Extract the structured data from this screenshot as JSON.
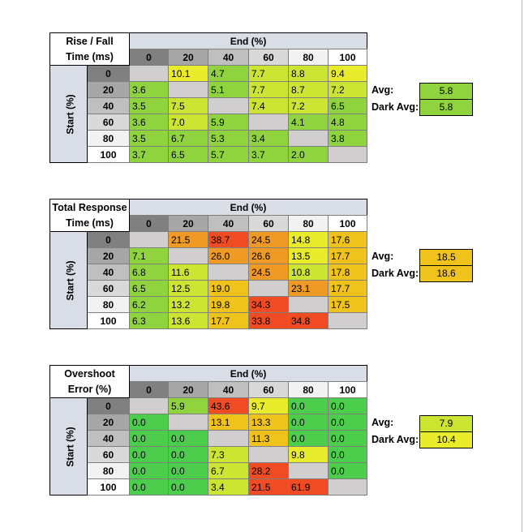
{
  "colors": {
    "header_bg": "#d9dee6",
    "empty": "#d0cece",
    "green_dark": "#4cce4c",
    "green": "#8fd33f",
    "yellowgreen": "#cbe532",
    "yellow": "#e8ec2a",
    "amber": "#efc21c",
    "orange": "#f09a26",
    "red": "#f04c24",
    "col_0": "#808080",
    "col_20": "#a6a6a6",
    "col_40": "#bfbfbf",
    "col_60": "#d9d9d9",
    "col_80": "#f2f2f2",
    "col_100": "#ffffff"
  },
  "col_labels": [
    "0",
    "20",
    "40",
    "60",
    "80",
    "100"
  ],
  "row_labels": [
    "0",
    "20",
    "40",
    "60",
    "80",
    "100"
  ],
  "end_header": "End (%)",
  "start_header": "Start (%)",
  "avg_label": "Avg:",
  "dark_avg_label": "Dark Avg:",
  "tables": [
    {
      "title_line1": "Rise / Fall",
      "title_line2": "Time (ms)",
      "avg": "5.8",
      "dark_avg": "5.8",
      "avg_color": "#8fd33f",
      "dark_avg_color": "#8fd33f",
      "cells": [
        [
          [
            "",
            "#d0cece"
          ],
          [
            "10.1",
            "#e8ec2a"
          ],
          [
            "4.7",
            "#8fd33f"
          ],
          [
            "7.7",
            "#cbe532"
          ],
          [
            "8.8",
            "#cbe532"
          ],
          [
            "9.4",
            "#e8ec2a"
          ]
        ],
        [
          [
            "3.6",
            "#8fd33f"
          ],
          [
            "",
            "#d0cece"
          ],
          [
            "5.1",
            "#8fd33f"
          ],
          [
            "7.7",
            "#cbe532"
          ],
          [
            "8.7",
            "#cbe532"
          ],
          [
            "7.2",
            "#cbe532"
          ]
        ],
        [
          [
            "3.5",
            "#8fd33f"
          ],
          [
            "7.5",
            "#cbe532"
          ],
          [
            "",
            "#d0cece"
          ],
          [
            "7.4",
            "#cbe532"
          ],
          [
            "7.2",
            "#cbe532"
          ],
          [
            "6.5",
            "#8fd33f"
          ]
        ],
        [
          [
            "3.6",
            "#8fd33f"
          ],
          [
            "7.0",
            "#cbe532"
          ],
          [
            "5.9",
            "#8fd33f"
          ],
          [
            "",
            "#d0cece"
          ],
          [
            "4.1",
            "#8fd33f"
          ],
          [
            "4.8",
            "#8fd33f"
          ]
        ],
        [
          [
            "3.5",
            "#8fd33f"
          ],
          [
            "6.7",
            "#8fd33f"
          ],
          [
            "5.3",
            "#8fd33f"
          ],
          [
            "3.4",
            "#8fd33f"
          ],
          [
            "",
            "#d0cece"
          ],
          [
            "3.8",
            "#8fd33f"
          ]
        ],
        [
          [
            "3.7",
            "#8fd33f"
          ],
          [
            "6.5",
            "#8fd33f"
          ],
          [
            "5.7",
            "#8fd33f"
          ],
          [
            "3.7",
            "#8fd33f"
          ],
          [
            "2.0",
            "#8fd33f"
          ],
          [
            "",
            "#d0cece"
          ]
        ]
      ]
    },
    {
      "title_line1": "Total Response",
      "title_line2": "Time (ms)",
      "avg": "18.5",
      "dark_avg": "18.6",
      "avg_color": "#efc21c",
      "dark_avg_color": "#efc21c",
      "cells": [
        [
          [
            "",
            "#d0cece"
          ],
          [
            "21.5",
            "#f09a26"
          ],
          [
            "38.7",
            "#f04c24"
          ],
          [
            "24.5",
            "#f09a26"
          ],
          [
            "14.8",
            "#e8ec2a"
          ],
          [
            "17.6",
            "#efc21c"
          ]
        ],
        [
          [
            "7.1",
            "#8fd33f"
          ],
          [
            "",
            "#d0cece"
          ],
          [
            "26.0",
            "#f09a26"
          ],
          [
            "26.6",
            "#f09a26"
          ],
          [
            "13.5",
            "#e8ec2a"
          ],
          [
            "17.7",
            "#efc21c"
          ]
        ],
        [
          [
            "6.8",
            "#8fd33f"
          ],
          [
            "11.6",
            "#cbe532"
          ],
          [
            "",
            "#d0cece"
          ],
          [
            "24.5",
            "#f09a26"
          ],
          [
            "10.8",
            "#cbe532"
          ],
          [
            "17.8",
            "#efc21c"
          ]
        ],
        [
          [
            "6.5",
            "#8fd33f"
          ],
          [
            "12.5",
            "#cbe532"
          ],
          [
            "19.0",
            "#efc21c"
          ],
          [
            "",
            "#d0cece"
          ],
          [
            "23.1",
            "#f09a26"
          ],
          [
            "17.7",
            "#efc21c"
          ]
        ],
        [
          [
            "6.2",
            "#8fd33f"
          ],
          [
            "13.2",
            "#cbe532"
          ],
          [
            "19.8",
            "#efc21c"
          ],
          [
            "34.3",
            "#f04c24"
          ],
          [
            "",
            "#d0cece"
          ],
          [
            "17.5",
            "#efc21c"
          ]
        ],
        [
          [
            "6.3",
            "#8fd33f"
          ],
          [
            "13.6",
            "#cbe532"
          ],
          [
            "17.7",
            "#efc21c"
          ],
          [
            "33.8",
            "#f04c24"
          ],
          [
            "34.8",
            "#f04c24"
          ],
          [
            "",
            "#d0cece"
          ]
        ]
      ]
    },
    {
      "title_line1": "Overshoot",
      "title_line2": "Error (%)",
      "avg": "7.9",
      "dark_avg": "10.4",
      "avg_color": "#cbe532",
      "dark_avg_color": "#e8ec2a",
      "cells": [
        [
          [
            "",
            "#d0cece"
          ],
          [
            "5.9",
            "#8fd33f"
          ],
          [
            "43.6",
            "#f04c24"
          ],
          [
            "9.7",
            "#e8ec2a"
          ],
          [
            "0.0",
            "#4cce4c"
          ],
          [
            "0.0",
            "#4cce4c"
          ]
        ],
        [
          [
            "0.0",
            "#4cce4c"
          ],
          [
            "",
            "#d0cece"
          ],
          [
            "13.1",
            "#efc21c"
          ],
          [
            "13.3",
            "#efc21c"
          ],
          [
            "0.0",
            "#4cce4c"
          ],
          [
            "0.0",
            "#4cce4c"
          ]
        ],
        [
          [
            "0.0",
            "#4cce4c"
          ],
          [
            "0.0",
            "#4cce4c"
          ],
          [
            "",
            "#d0cece"
          ],
          [
            "11.3",
            "#efc21c"
          ],
          [
            "0.0",
            "#4cce4c"
          ],
          [
            "0.0",
            "#4cce4c"
          ]
        ],
        [
          [
            "0.0",
            "#4cce4c"
          ],
          [
            "0.0",
            "#4cce4c"
          ],
          [
            "7.3",
            "#cbe532"
          ],
          [
            "",
            "#d0cece"
          ],
          [
            "9.8",
            "#e8ec2a"
          ],
          [
            "0.0",
            "#4cce4c"
          ]
        ],
        [
          [
            "0.0",
            "#4cce4c"
          ],
          [
            "0.0",
            "#4cce4c"
          ],
          [
            "6.7",
            "#cbe532"
          ],
          [
            "28.2",
            "#f04c24"
          ],
          [
            "",
            "#d0cece"
          ],
          [
            "0.0",
            "#4cce4c"
          ]
        ],
        [
          [
            "0.0",
            "#4cce4c"
          ],
          [
            "0.0",
            "#4cce4c"
          ],
          [
            "3.4",
            "#cbe532"
          ],
          [
            "21.5",
            "#f04c24"
          ],
          [
            "61.9",
            "#f04c24"
          ],
          [
            "",
            "#d0cece"
          ]
        ]
      ]
    }
  ]
}
